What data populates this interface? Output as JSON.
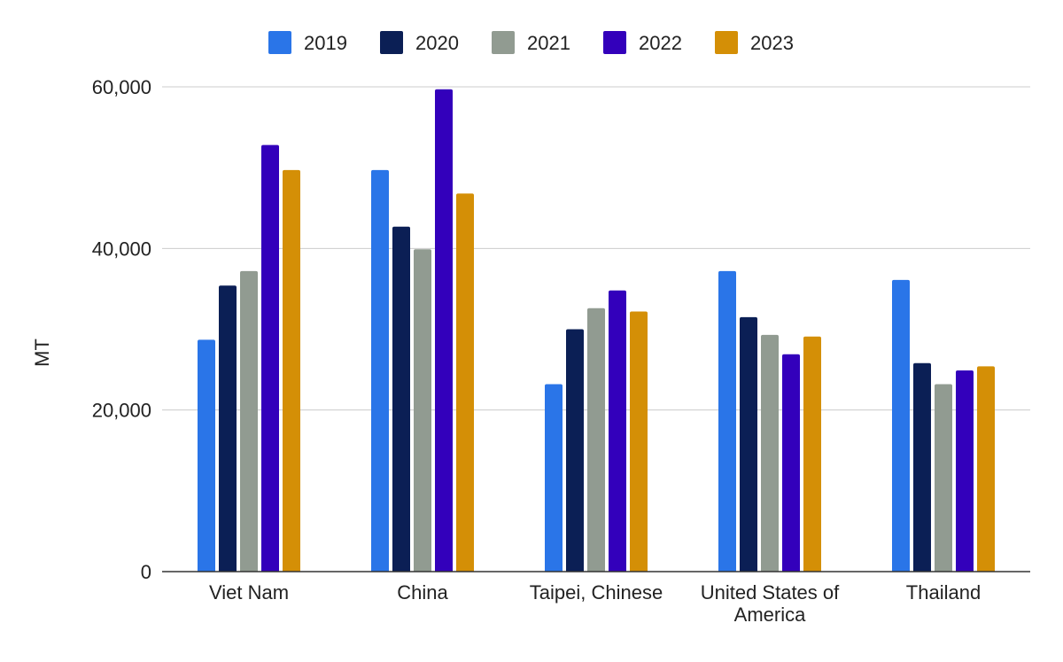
{
  "chart_data": {
    "type": "bar",
    "title": "",
    "xlabel": "",
    "ylabel": "MT",
    "ylim": [
      0,
      60000
    ],
    "yticks": [
      0,
      20000,
      40000,
      60000
    ],
    "ytick_labels": [
      "0",
      "20,000",
      "40,000",
      "60,000"
    ],
    "grid": true,
    "legend_position": "top",
    "categories": [
      [
        "Viet Nam"
      ],
      [
        "China"
      ],
      [
        "Taipei, Chinese"
      ],
      [
        "United States of",
        "America"
      ],
      [
        "Thailand"
      ]
    ],
    "series": [
      {
        "name": "2019",
        "color": "#2a75e8",
        "values": [
          28700,
          49700,
          23200,
          37200,
          36100
        ]
      },
      {
        "name": "2020",
        "color": "#0b1f55",
        "values": [
          35400,
          42700,
          30000,
          31500,
          25800
        ]
      },
      {
        "name": "2021",
        "color": "#919b91",
        "values": [
          37200,
          39900,
          32600,
          29300,
          23200
        ]
      },
      {
        "name": "2022",
        "color": "#3300bb",
        "values": [
          52800,
          59700,
          34800,
          26900,
          24900
        ]
      },
      {
        "name": "2023",
        "color": "#d48f06",
        "values": [
          49700,
          46800,
          32200,
          29100,
          25400
        ]
      }
    ]
  }
}
